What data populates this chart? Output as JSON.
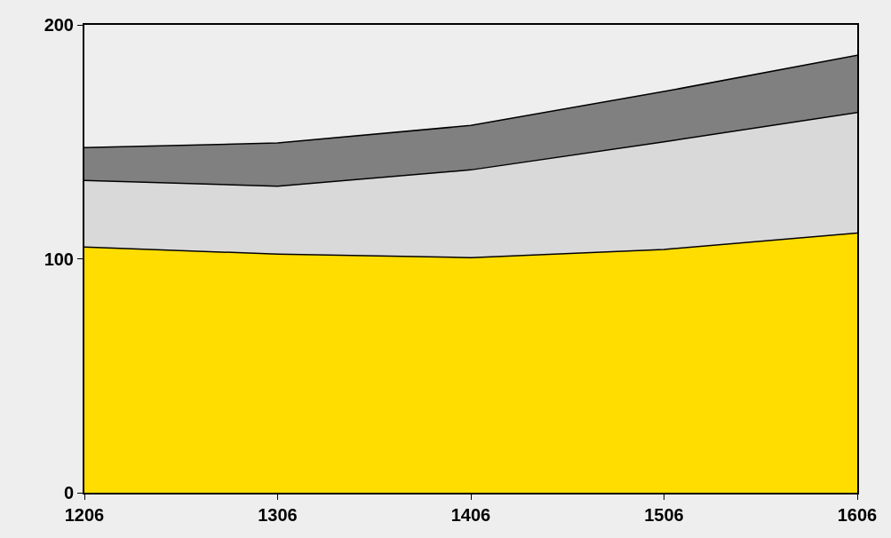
{
  "chart_data": {
    "type": "area",
    "stacked": true,
    "categories": [
      "1206",
      "1306",
      "1406",
      "1506",
      "1606"
    ],
    "series": [
      {
        "color": "#ffdd00",
        "values": [
          105,
          102,
          100.5,
          104,
          111
        ]
      },
      {
        "color": "#d9d9d9",
        "values": [
          28.5,
          29,
          37.5,
          46,
          51.5
        ]
      },
      {
        "color": "#808080",
        "values": [
          14,
          18.5,
          19,
          21.5,
          24.5
        ]
      }
    ],
    "ylim": [
      0,
      200
    ],
    "yticks": [
      0,
      100,
      200
    ],
    "grid": false
  }
}
